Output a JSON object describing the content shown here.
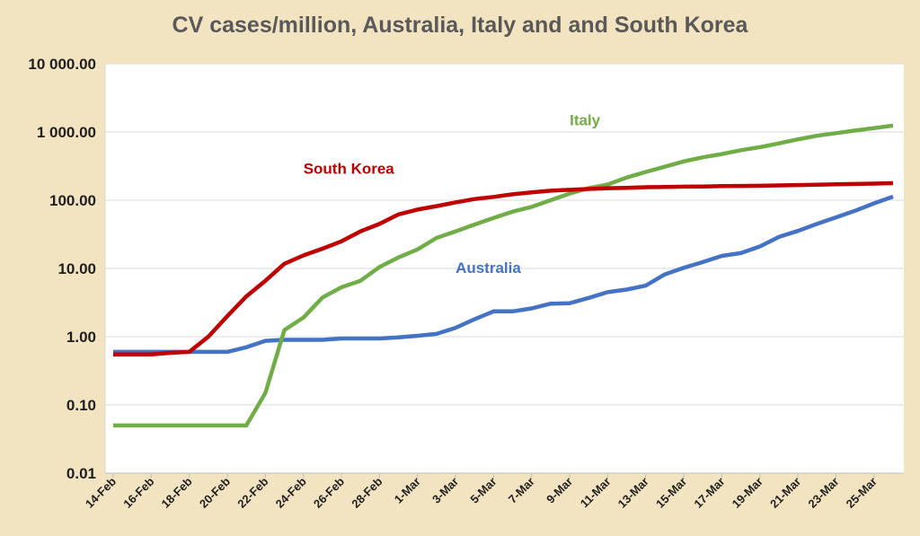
{
  "chart_data": {
    "type": "line",
    "title": "CV cases/million, Australia, Italy and and South Korea",
    "xlabel": "",
    "ylabel": "",
    "yscale": "log",
    "ylim": [
      0.01,
      10000
    ],
    "y_ticks": [
      {
        "value": 10000,
        "label": "10 000.00"
      },
      {
        "value": 1000,
        "label": "1 000.00"
      },
      {
        "value": 100,
        "label": "100.00"
      },
      {
        "value": 10,
        "label": "10.00"
      },
      {
        "value": 1,
        "label": "1.00"
      },
      {
        "value": 0.1,
        "label": "0.10"
      },
      {
        "value": 0.01,
        "label": "0.01"
      }
    ],
    "grid": true,
    "categories": [
      "14-Feb",
      "15-Feb",
      "16-Feb",
      "17-Feb",
      "18-Feb",
      "19-Feb",
      "20-Feb",
      "21-Feb",
      "22-Feb",
      "23-Feb",
      "24-Feb",
      "25-Feb",
      "26-Feb",
      "27-Feb",
      "28-Feb",
      "29-Feb",
      "1-Mar",
      "2-Mar",
      "3-Mar",
      "4-Mar",
      "5-Mar",
      "6-Mar",
      "7-Mar",
      "8-Mar",
      "9-Mar",
      "10-Mar",
      "11-Mar",
      "12-Mar",
      "13-Mar",
      "14-Mar",
      "15-Mar",
      "16-Mar",
      "17-Mar",
      "18-Mar",
      "19-Mar",
      "20-Mar",
      "21-Mar",
      "22-Mar",
      "23-Mar",
      "24-Mar",
      "25-Mar",
      "26-Mar"
    ],
    "x_tick_labels": [
      "14-Feb",
      "16-Feb",
      "18-Feb",
      "20-Feb",
      "22-Feb",
      "24-Feb",
      "26-Feb",
      "28-Feb",
      "1-Mar",
      "3-Mar",
      "5-Mar",
      "7-Mar",
      "9-Mar",
      "11-Mar",
      "13-Mar",
      "15-Mar",
      "17-Mar",
      "19-Mar",
      "21-Mar",
      "23-Mar",
      "25-Mar"
    ],
    "series": [
      {
        "name": "Australia",
        "color": "#4472c4",
        "values": [
          0.6,
          0.6,
          0.6,
          0.6,
          0.6,
          0.6,
          0.6,
          0.7,
          0.87,
          0.9,
          0.9,
          0.9,
          0.94,
          0.94,
          0.94,
          0.98,
          1.03,
          1.1,
          1.35,
          1.8,
          2.35,
          2.35,
          2.6,
          3.05,
          3.1,
          3.7,
          4.5,
          4.9,
          5.6,
          8.2,
          10.2,
          12.4,
          15.3,
          16.8,
          21.0,
          29.0,
          35.5,
          45.0,
          56.0,
          70.0,
          90.0,
          113.0
        ]
      },
      {
        "name": "Italy",
        "color": "#70ad47",
        "values": [
          0.05,
          0.05,
          0.05,
          0.05,
          0.05,
          0.05,
          0.05,
          0.05,
          0.15,
          1.25,
          1.9,
          3.75,
          5.3,
          6.6,
          10.5,
          14.5,
          19.0,
          28.0,
          35.0,
          44.0,
          55.0,
          68.0,
          80.0,
          100.0,
          125.0,
          150.0,
          170.0,
          215.0,
          260.0,
          310.0,
          370.0,
          425.0,
          475.0,
          540.0,
          600.0,
          680.0,
          780.0,
          880.0,
          960.0,
          1050.0,
          1140.0,
          1240.0
        ]
      },
      {
        "name": "South Korea",
        "color": "#c00000",
        "values": [
          0.55,
          0.55,
          0.55,
          0.58,
          0.6,
          1.0,
          2.0,
          3.9,
          6.6,
          11.7,
          15.5,
          19.5,
          25.0,
          35.0,
          45.0,
          62.0,
          73.0,
          82.0,
          93.0,
          104.0,
          112.0,
          122.0,
          130.0,
          138.0,
          142.0,
          146.0,
          150.0,
          152.0,
          155.0,
          156.0,
          158.0,
          159.0,
          161.0,
          162.0,
          163.0,
          165.0,
          167.0,
          169.0,
          171.0,
          173.0,
          175.0,
          178.0
        ]
      }
    ],
    "annotations": [
      {
        "text": "Italy",
        "series": "Italy",
        "color": "#70ad47",
        "anchor_category": "9-Mar",
        "anchor_value": 1250
      },
      {
        "text": "South Korea",
        "series": "South Korea",
        "color": "#c00000",
        "anchor_category": "24-Feb",
        "anchor_value": 245
      },
      {
        "text": "Australia",
        "series": "Australia",
        "color": "#4472c4",
        "anchor_category": "3-Mar",
        "anchor_value": 8.6
      }
    ]
  }
}
